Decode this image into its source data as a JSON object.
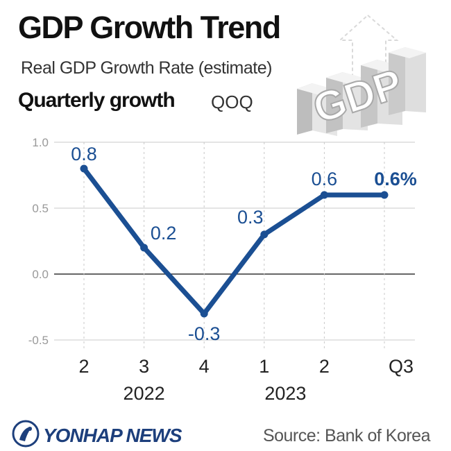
{
  "header": {
    "title": "GDP Growth Trend",
    "subtitle": "Real GDP Growth Rate (estimate)",
    "section_title": "Quarterly growth",
    "section_unit": "QOQ"
  },
  "graphic": {
    "label": "GDP"
  },
  "footer": {
    "brand": "YONHAP NEWS",
    "source": "Source: Bank of Korea"
  },
  "colors": {
    "line": "#1b4f93",
    "label": "#1b4f93",
    "grid": "#c8c8c8",
    "zero_line": "#333333",
    "brand": "#1d3f7c"
  },
  "chart_data": {
    "type": "line",
    "categories": [
      "2",
      "3",
      "4",
      "1",
      "2",
      "Q3"
    ],
    "years": [
      {
        "label": "2022",
        "from_index": 0,
        "to_index": 2
      },
      {
        "label": "2023",
        "from_index": 3,
        "to_index": 5
      }
    ],
    "series": [
      {
        "values": [
          0.8,
          0.2,
          -0.3,
          0.3,
          0.6,
          0.6
        ]
      }
    ],
    "data_labels": [
      "0.8",
      "0.2",
      "-0.3",
      "0.3",
      "0.6",
      "0.6%"
    ],
    "y_ticks": [
      "1.0",
      "0.5",
      "0.0",
      "-0.5"
    ],
    "y_tick_values": [
      1.0,
      0.5,
      0.0,
      -0.5
    ],
    "ylim": [
      -0.5,
      1.0
    ],
    "grid": true
  }
}
